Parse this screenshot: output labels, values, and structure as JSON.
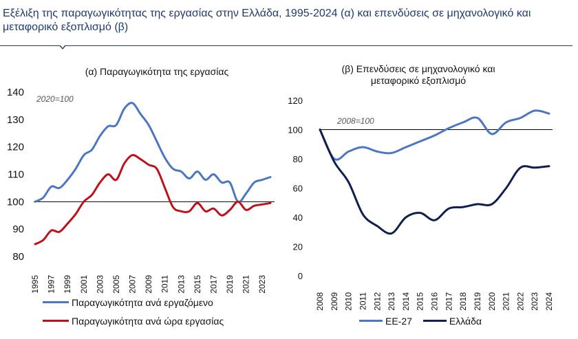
{
  "header": {
    "title": "Εξέλιξη της παραγωγικότητας της εργασίας στην Ελλάδα, 1995-2024 (α) και επενδύσεις σε μηχανολογικό και μεταφορικό εξοπλισμό (β)"
  },
  "colors": {
    "accent": "#1f3b6e",
    "blue": "#4a76c4",
    "red": "#c0111b",
    "navy": "#0f1f4f"
  },
  "chart_data": [
    {
      "type": "line",
      "title": "(α) Παραγωγικότητα της εργασίας",
      "annotation": "2020=100",
      "x": [
        1995,
        1996,
        1997,
        1998,
        1999,
        2000,
        2001,
        2002,
        2003,
        2004,
        2005,
        2006,
        2007,
        2008,
        2009,
        2010,
        2011,
        2012,
        2013,
        2014,
        2015,
        2016,
        2017,
        2018,
        2019,
        2020,
        2021,
        2022,
        2023,
        2024
      ],
      "x_tick_labels": [
        "1995",
        "1997",
        "1999",
        "2001",
        "2003",
        "2005",
        "2007",
        "2009",
        "2011",
        "2013",
        "2015",
        "2017",
        "2019",
        "2021",
        "2023"
      ],
      "ylim": [
        80,
        140
      ],
      "y_ticks": [
        80,
        90,
        100,
        110,
        120,
        130,
        140
      ],
      "reference_line": 100,
      "legend_position": "bottom",
      "series": [
        {
          "name": "Παραγωγικότητα ανά εργαζόμενο",
          "color": "#4a76c4",
          "values": [
            100,
            101.5,
            105.5,
            105,
            108,
            112,
            117,
            119,
            124,
            127.5,
            128,
            134,
            136,
            132,
            128,
            122,
            116,
            112,
            111,
            108.5,
            111,
            108,
            110,
            107,
            107,
            100,
            103,
            107,
            108,
            109
          ]
        },
        {
          "name": "Παραγωγικότητα ανά ώρα εργασίας",
          "color": "#c0111b",
          "values": [
            84.5,
            86,
            89.5,
            89,
            92,
            95.5,
            100,
            102.5,
            107,
            110,
            108,
            114,
            117,
            115.5,
            113.5,
            112,
            105,
            98,
            96.5,
            96.5,
            99.5,
            96.5,
            97.5,
            95,
            97,
            100,
            97,
            98.5,
            99,
            99.5
          ]
        }
      ]
    },
    {
      "type": "line",
      "title": "(β) Επενδύσεις σε μηχανολογικό και μεταφορικό εξοπλισμό",
      "annotation": "2008=100",
      "x": [
        2008,
        2009,
        2010,
        2011,
        2012,
        2013,
        2014,
        2015,
        2016,
        2017,
        2018,
        2019,
        2020,
        2021,
        2022,
        2023,
        2024
      ],
      "x_tick_labels": [
        "2008",
        "2009",
        "2010",
        "2011",
        "2012",
        "2013",
        "2014",
        "2015",
        "2016",
        "2017",
        "2018",
        "2019",
        "2020",
        "2021",
        "2022",
        "2023",
        "2024"
      ],
      "ylim": [
        0,
        120
      ],
      "y_ticks": [
        0,
        20,
        40,
        60,
        80,
        100,
        120
      ],
      "reference_line": 100,
      "legend_position": "bottom",
      "series": [
        {
          "name": "ΕΕ-27",
          "color": "#4a76c4",
          "values": [
            100,
            80,
            85,
            88,
            85,
            84,
            88,
            92,
            96,
            101,
            105,
            108,
            97,
            105,
            108,
            113,
            111
          ]
        },
        {
          "name": "Ελλάδα",
          "color": "#0f1f4f",
          "values": [
            100,
            78,
            64,
            42,
            34,
            29,
            40,
            43,
            38,
            46,
            47,
            49,
            49,
            60,
            74,
            74,
            75
          ]
        }
      ]
    }
  ]
}
